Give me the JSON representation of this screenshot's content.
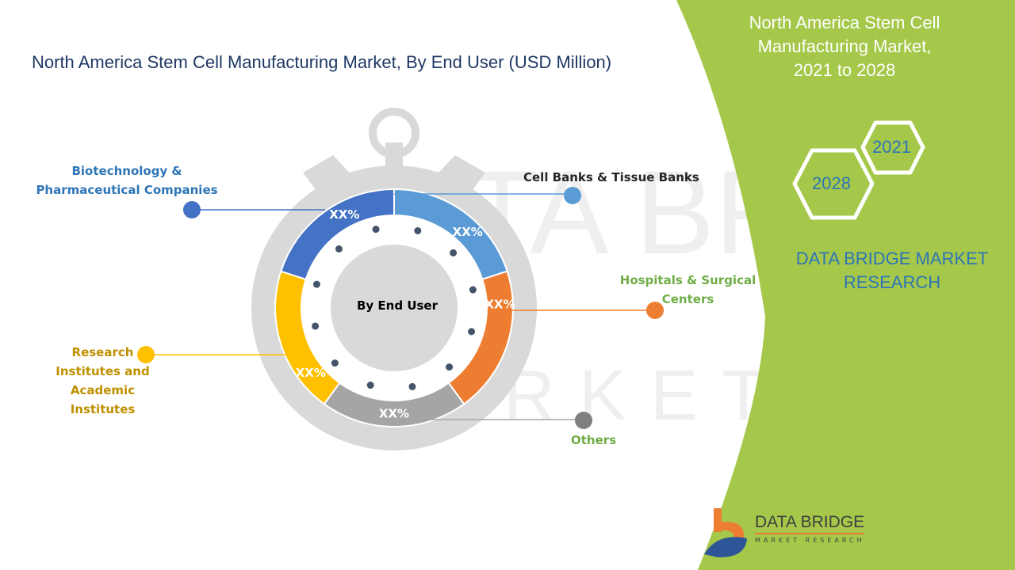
{
  "title": "North America Stem Cell Manufacturing Market, By End User (USD Million)",
  "center_label": "By End User",
  "segments": [
    {
      "label": "Cell Banks & Tissue Banks",
      "value_label": "XX%",
      "color": "#5b9bd5",
      "label_color": "#262626"
    },
    {
      "label": "Hospitals & Surgical Centers",
      "value_label": "XX%",
      "color": "#ed7d31",
      "label_color": "#70ad47"
    },
    {
      "label": "Others",
      "value_label": "XX%",
      "color": "#a5a5a5",
      "label_color": "#70ad47"
    },
    {
      "label": "Research Institutes and Academic Institutes",
      "value_label": "XX%",
      "color": "#ffc000",
      "label_color": "#bf9000"
    },
    {
      "label": "Biotechnology & Pharmaceutical Companies",
      "value_label": "XX%",
      "color": "#4472c4",
      "label_color": "#2e75b6"
    }
  ],
  "panel": {
    "title_lines": [
      "North America Stem Cell",
      "Manufacturing Market,",
      "2021 to 2028"
    ],
    "year_start": "2021",
    "year_end": "2028",
    "brand_lines": [
      "DATA BRIDGE MARKET",
      "RESEARCH"
    ],
    "color": "#a5c84a"
  },
  "logo": {
    "name": "DATA BRIDGE",
    "tagline": "MARKET RESEARCH"
  }
}
